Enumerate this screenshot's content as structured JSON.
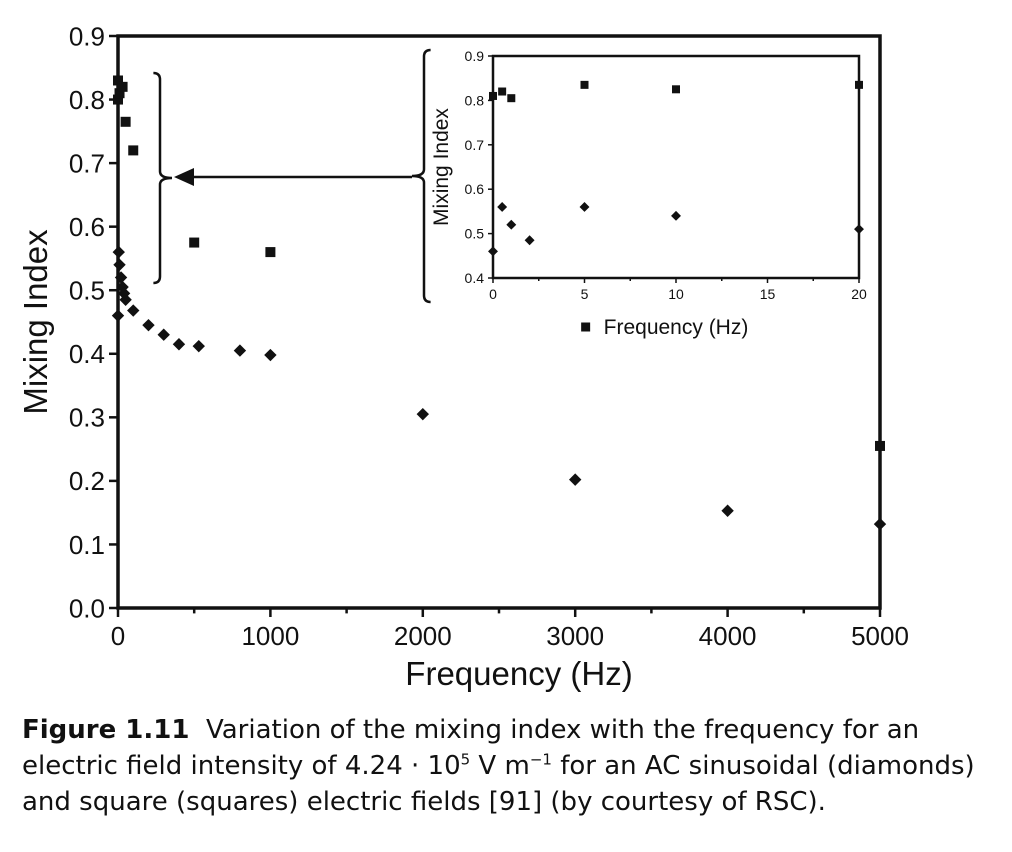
{
  "chart_data": [
    {
      "type": "scatter",
      "xlabel": "Frequency (Hz)",
      "ylabel": "Mixing Index",
      "xlim": [
        0,
        5000
      ],
      "ylim": [
        0,
        0.9
      ],
      "x_ticks": [
        "0",
        "1000",
        "2000",
        "3000",
        "4000",
        "5000"
      ],
      "y_ticks": [
        "0.0",
        "0.1",
        "0.2",
        "0.3",
        "0.4",
        "0.5",
        "0.6",
        "0.7",
        "0.8",
        "0.9"
      ],
      "series": [
        {
          "marker": "square",
          "points": [
            [
              0,
              0.83
            ],
            [
              0,
              0.8
            ],
            [
              10,
              0.81
            ],
            [
              30,
              0.82
            ],
            [
              50,
              0.765
            ],
            [
              100,
              0.72
            ],
            [
              500,
              0.575
            ],
            [
              1000,
              0.56
            ],
            [
              5000,
              0.255
            ]
          ]
        },
        {
          "marker": "diamond",
          "points": [
            [
              0,
              0.46
            ],
            [
              5,
              0.56
            ],
            [
              10,
              0.54
            ],
            [
              20,
              0.52
            ],
            [
              30,
              0.505
            ],
            [
              40,
              0.495
            ],
            [
              50,
              0.485
            ],
            [
              100,
              0.468
            ],
            [
              200,
              0.445
            ],
            [
              300,
              0.43
            ],
            [
              400,
              0.415
            ],
            [
              530,
              0.412
            ],
            [
              800,
              0.405
            ],
            [
              1000,
              0.398
            ],
            [
              2000,
              0.305
            ],
            [
              3000,
              0.202
            ],
            [
              4000,
              0.153
            ],
            [
              5000,
              0.132
            ]
          ]
        }
      ]
    },
    {
      "type": "scatter",
      "xlabel": "Frequency (Hz)",
      "ylabel": "Mixing Index",
      "xlim": [
        0,
        20
      ],
      "ylim": [
        0.4,
        0.9
      ],
      "x_ticks": [
        "0",
        "5",
        "10",
        "15",
        "20"
      ],
      "y_ticks": [
        "0.4",
        "0.5",
        "0.6",
        "0.7",
        "0.8",
        "0.9"
      ],
      "legend": "bottom",
      "series": [
        {
          "marker": "square",
          "points": [
            [
              0,
              0.81
            ],
            [
              0.5,
              0.82
            ],
            [
              1,
              0.805
            ],
            [
              5,
              0.835
            ],
            [
              10,
              0.825
            ],
            [
              20,
              0.835
            ]
          ]
        },
        {
          "marker": "diamond",
          "points": [
            [
              0,
              0.46
            ],
            [
              0.5,
              0.56
            ],
            [
              1,
              0.52
            ],
            [
              2,
              0.485
            ],
            [
              5,
              0.56
            ],
            [
              10,
              0.54
            ],
            [
              20,
              0.51
            ]
          ]
        }
      ]
    }
  ],
  "caption": {
    "figure_number": "Figure 1.11",
    "line1": "Variation of the mixing index with the frequency for an",
    "line2_a": "electric field intensity of 4.24 · 10",
    "line2_exp1": "5",
    "line2_b": " V m",
    "line2_exp2": "−1",
    "line2_c": " for an AC sinusoidal (diamonds)",
    "line3": "and square (squares) electric fields [91] (by courtesy of RSC)."
  }
}
